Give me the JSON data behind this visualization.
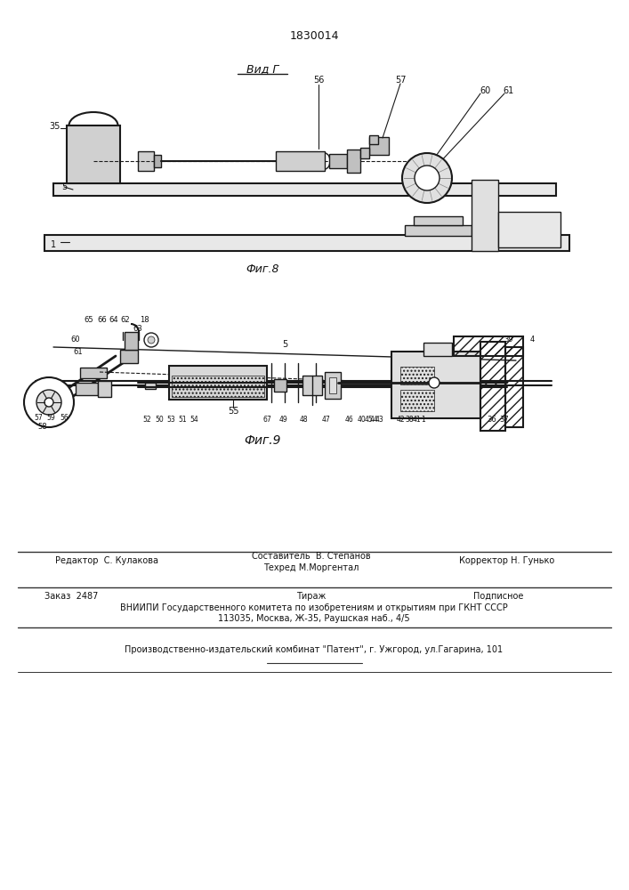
{
  "patent_number": "1830014",
  "fig8_label": "Вид Г",
  "fig8_caption": "Фиг.8",
  "fig9_caption": "Фиг.9",
  "bg_color": "#ffffff",
  "line_color": "#1a1a1a",
  "hatch_color": "#333333",
  "text_color": "#111111",
  "footer_lines": [
    [
      "Редактор  С. Кулакова",
      "Составитель  В. Степанов\nТехред М.Моргентал",
      "Корректор Н. Гунько"
    ],
    [
      "Заказ  2487",
      "Тираж",
      "Подписное"
    ],
    [
      "ВНИИПИ Государственного комитета по изобретениям и открытиям при ГКНТ СССР"
    ],
    [
      "113035, Москва, Ж-35, Раушская наб., 4/5"
    ],
    [
      "Производственно-издательский комбинат \"Патент\", г. Ужгород, ул.Гагарина, 101"
    ]
  ]
}
